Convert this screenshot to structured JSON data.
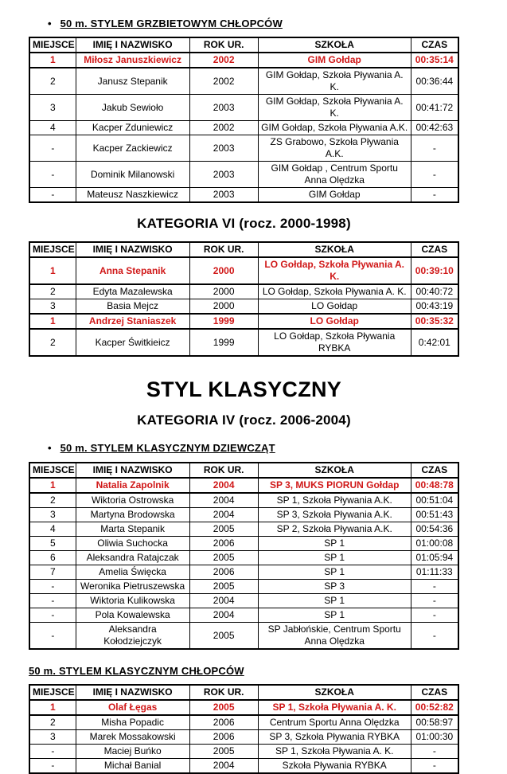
{
  "colors": {
    "winner_red": "#d01818",
    "border": "#000000",
    "background": "#ffffff"
  },
  "headings": {
    "backstroke_boys": "50 m. STYLEM GRZBIETOWYM CHŁOPCÓW",
    "kategoria_vi": "KATEGORIA VI (rocz. 2000-1998)",
    "styl_klasyczny": "STYL KLASYCZNY",
    "kategoria_iv": "KATEGORIA IV (rocz. 2006-2004)",
    "breaststroke_girls": "50 m. STYLEM KLASYCZNYM DZIEWCZĄT",
    "breaststroke_boys": "50 m. STYLEM KLASYCZNYM CHŁOPCÓW",
    "bullet_glyph": "•"
  },
  "columns": [
    "MIEJSCE",
    "IMIĘ I NAZWISKO",
    "ROK UR.",
    "SZKOŁA",
    "CZAS"
  ],
  "tables": {
    "backstroke_boys": {
      "rows": [
        {
          "place": "1",
          "name": "Miłosz Januszkiewicz",
          "year": "2002",
          "school": "GIM Gołdap",
          "time": "00:35:14",
          "winner": true
        },
        {
          "place": "2",
          "name": "Janusz Stepanik",
          "year": "2002",
          "school": "GIM Gołdap, Szkoła Pływania A. K.",
          "time": "00:36:44"
        },
        {
          "place": "3",
          "name": "Jakub Sewioło",
          "year": "2003",
          "school": "GIM Gołdap, Szkoła Pływania A. K.",
          "time": "00:41:72"
        },
        {
          "place": "4",
          "name": "Kacper Zduniewicz",
          "year": "2002",
          "school": "GIM Gołdap, Szkoła Pływania A.K.",
          "time": "00:42:63"
        },
        {
          "place": "-",
          "name": "Kacper Zackiewicz",
          "year": "2003",
          "school": "ZS Grabowo, Szkoła Pływania A.K.",
          "time": "-"
        },
        {
          "place": "-",
          "name": "Dominik Milanowski",
          "year": "2003",
          "school": "GIM Gołdap , Centrum Sportu Anna Olędzka",
          "time": "-"
        },
        {
          "place": "-",
          "name": "Mateusz Naszkiewicz",
          "year": "2003",
          "school": "GIM Gołdap",
          "time": "-"
        }
      ]
    },
    "kategoria_vi": {
      "rows": [
        {
          "place": "1",
          "name": "Anna Stepanik",
          "year": "2000",
          "school": "LO Gołdap, Szkoła Pływania A. K.",
          "time": "00:39:10",
          "winner": true
        },
        {
          "place": "2",
          "name": "Edyta Mazalewska",
          "year": "2000",
          "school": "LO Gołdap, Szkoła Pływania A. K.",
          "time": "00:40:72"
        },
        {
          "place": "3",
          "name": "Basia Mejcz",
          "year": "2000",
          "school": "LO Gołdap",
          "time": "00:43:19"
        },
        {
          "place": "1",
          "name": "Andrzej Staniaszek",
          "year": "1999",
          "school": "LO Gołdap",
          "time": "00:35:32",
          "winner": true
        },
        {
          "place": "2",
          "name": "Kacper Świtkieicz",
          "year": "1999",
          "school": "LO Gołdap, Szkoła Pływania RYBKA",
          "time": "0:42:01"
        }
      ]
    },
    "breaststroke_girls": {
      "rows": [
        {
          "place": "1",
          "name": "Natalia Zapolnik",
          "year": "2004",
          "school": "SP 3, MUKS PIORUN Gołdap",
          "time": "00:48:78",
          "winner": true
        },
        {
          "place": "2",
          "name": "Wiktoria Ostrowska",
          "year": "2004",
          "school": "SP 1, Szkoła Pływania A.K.",
          "time": "00:51:04"
        },
        {
          "place": "3",
          "name": "Martyna Brodowska",
          "year": "2004",
          "school": "SP 3, Szkoła Pływania A.K.",
          "time": "00:51:43"
        },
        {
          "place": "4",
          "name": "Marta Stepanik",
          "year": "2005",
          "school": "SP 2, Szkoła Pływania A.K.",
          "time": "00:54:36"
        },
        {
          "place": "5",
          "name": "Oliwia Suchocka",
          "year": "2006",
          "school": "SP 1",
          "time": "01:00:08"
        },
        {
          "place": "6",
          "name": "Aleksandra Ratajczak",
          "year": "2005",
          "school": "SP 1",
          "time": "01:05:94"
        },
        {
          "place": "7",
          "name": "Amelia Święcka",
          "year": "2006",
          "school": "SP 1",
          "time": "01:11:33"
        },
        {
          "place": "-",
          "name": "Weronika Pietruszewska",
          "year": "2005",
          "school": "SP 3",
          "time": "-"
        },
        {
          "place": "-",
          "name": "Wiktoria Kulikowska",
          "year": "2004",
          "school": "SP 1",
          "time": "-"
        },
        {
          "place": "-",
          "name": "Pola Kowalewska",
          "year": "2004",
          "school": "SP 1",
          "time": "-"
        },
        {
          "place": "-",
          "name": "Aleksandra Kołodziejczyk",
          "year": "2005",
          "school": "SP Jabłońskie, Centrum Sportu Anna Olędzka",
          "time": "-"
        }
      ]
    },
    "breaststroke_boys": {
      "rows": [
        {
          "place": "1",
          "name": "Olaf Łęgas",
          "year": "2005",
          "school": "SP 1, Szkoła Pływania A. K.",
          "time": "00:52:82",
          "winner": true
        },
        {
          "place": "2",
          "name": "Misha Popadic",
          "year": "2006",
          "school": "Centrum Sportu Anna Olędzka",
          "time": "00:58:97"
        },
        {
          "place": "3",
          "name": "Marek Mossakowski",
          "year": "2006",
          "school": "SP 3, Szkoła Pływania RYBKA",
          "time": "01:00:30"
        },
        {
          "place": "-",
          "name": "Maciej Buńko",
          "year": "2005",
          "school": "SP 1, Szkoła Pływania A. K.",
          "time": "-"
        },
        {
          "place": "-",
          "name": "Michał Banial",
          "year": "2004",
          "school": "Szkoła Pływania RYBKA",
          "time": "-"
        }
      ]
    }
  }
}
